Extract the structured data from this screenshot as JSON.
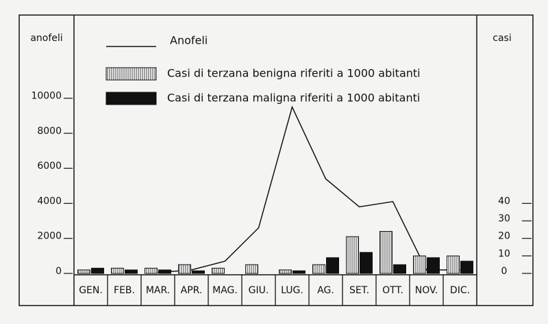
{
  "chart_data": {
    "type": "combo",
    "categories": [
      "GEN.",
      "FEB.",
      "MAR.",
      "APR.",
      "MAG.",
      "GIU.",
      "LUG.",
      "AG.",
      "SET.",
      "OTT.",
      "NOV.",
      "DIC."
    ],
    "ylabel": "anofeli",
    "y2label": "casi",
    "ylim": [
      0,
      14750
    ],
    "yticks": [
      0,
      2000,
      4000,
      6000,
      8000,
      10000
    ],
    "y2lim": [
      0,
      147.5
    ],
    "y2ticks": [
      0,
      10,
      20,
      30,
      40
    ],
    "series": [
      {
        "name": "Anofeli",
        "type": "line",
        "color": "#111111",
        "axis": "y",
        "values": [
          null,
          null,
          50,
          200,
          700,
          2600,
          9500,
          5400,
          3800,
          4100,
          200,
          200
        ]
      },
      {
        "name": "Casi di terzana benigna riferiti a 1000 abitanti",
        "type": "bar",
        "color": "#ffffff",
        "pattern": "vertical-stripes",
        "axis": "y2",
        "values": [
          2,
          3,
          3,
          5,
          3,
          5,
          2,
          5,
          21,
          24,
          10,
          10
        ]
      },
      {
        "name": "Casi di terzana maligna riferiti a 1000 abitanti",
        "type": "bar",
        "color": "#111111",
        "axis": "y2",
        "values": [
          3,
          2,
          2,
          1.5,
          0,
          0,
          1.5,
          9,
          12,
          5,
          9,
          7
        ]
      }
    ]
  }
}
